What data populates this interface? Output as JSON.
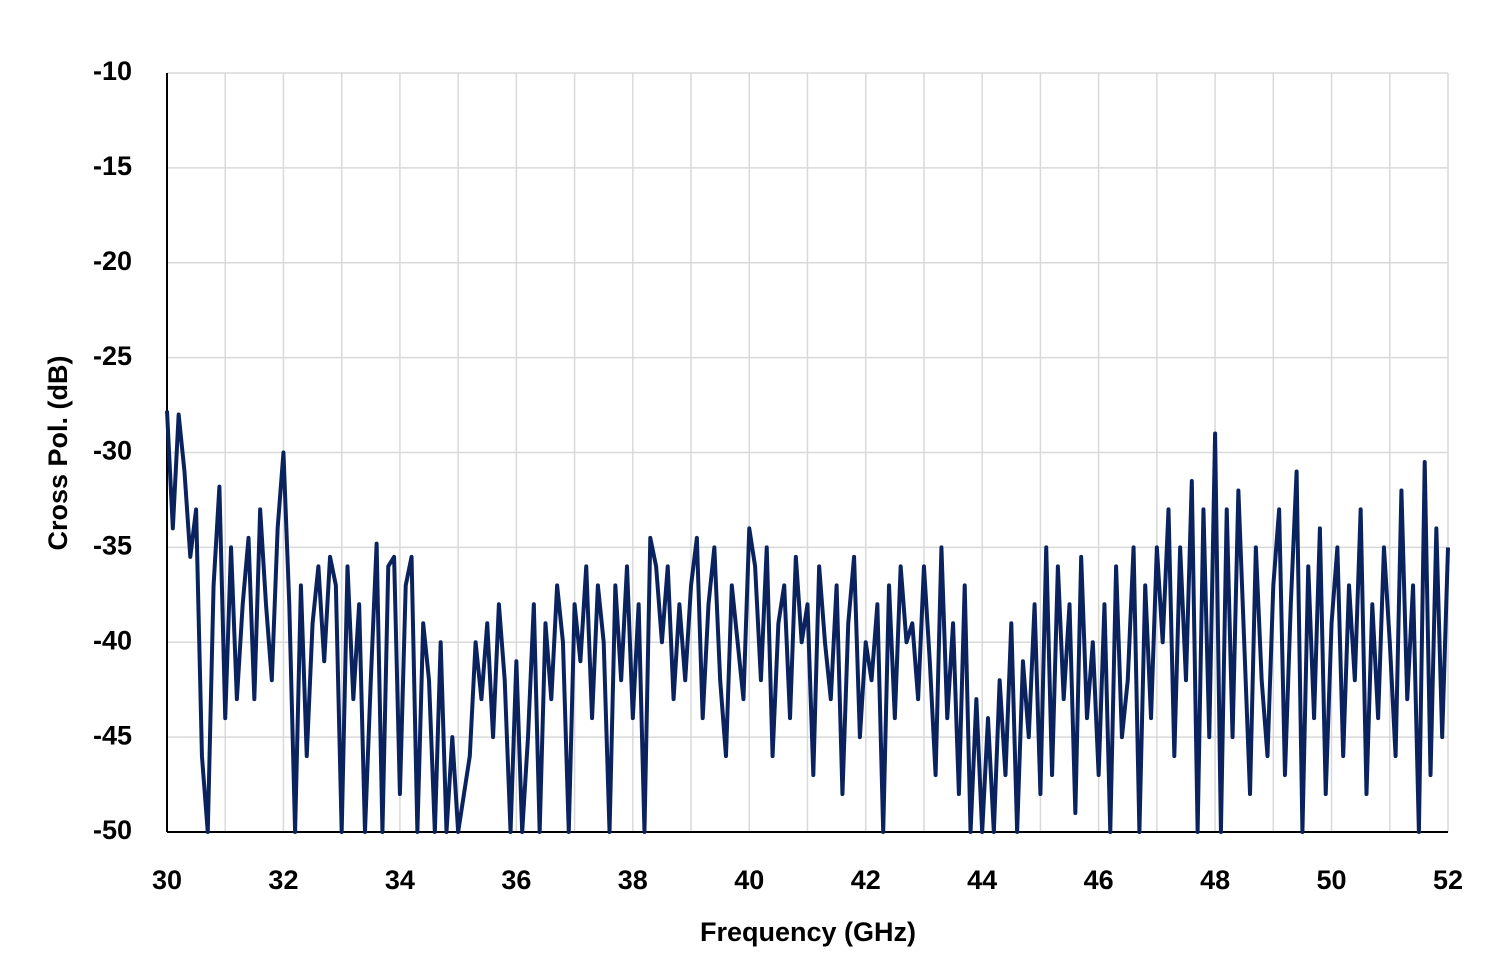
{
  "chart_data": {
    "type": "line",
    "x_label": "Frequency  (GHz)",
    "y_label": "Cross Pol. (dB)",
    "xlim": [
      30,
      52
    ],
    "xticks": [
      30,
      32,
      34,
      36,
      38,
      40,
      42,
      44,
      46,
      48,
      50,
      52
    ],
    "x_minor_gridlines": [
      31,
      33,
      35,
      37,
      39,
      41,
      43,
      45,
      47,
      49,
      51
    ],
    "ylim": [
      -50,
      -10
    ],
    "yticks": [
      -50,
      -45,
      -40,
      -35,
      -30,
      -25,
      -20,
      -15,
      -10
    ],
    "grid": true,
    "x": [
      30.0,
      30.1,
      30.2,
      30.3,
      30.4,
      30.5,
      30.6,
      30.7,
      30.8,
      30.9,
      31.0,
      31.1,
      31.2,
      31.3,
      31.4,
      31.5,
      31.6,
      31.7,
      31.8,
      31.9,
      32.0,
      32.1,
      32.2,
      32.3,
      32.4,
      32.5,
      32.6,
      32.7,
      32.8,
      32.9,
      33.0,
      33.1,
      33.2,
      33.3,
      33.4,
      33.5,
      33.6,
      33.7,
      33.8,
      33.9,
      34.0,
      34.1,
      34.2,
      34.3,
      34.4,
      34.5,
      34.6,
      34.7,
      34.8,
      34.9,
      35.0,
      35.1,
      35.2,
      35.3,
      35.4,
      35.5,
      35.6,
      35.7,
      35.8,
      35.9,
      36.0,
      36.1,
      36.2,
      36.3,
      36.4,
      36.5,
      36.6,
      36.7,
      36.8,
      36.9,
      37.0,
      37.1,
      37.2,
      37.3,
      37.4,
      37.5,
      37.6,
      37.7,
      37.8,
      37.9,
      38.0,
      38.1,
      38.2,
      38.3,
      38.4,
      38.5,
      38.6,
      38.7,
      38.8,
      38.9,
      39.0,
      39.1,
      39.2,
      39.3,
      39.4,
      39.5,
      39.6,
      39.7,
      39.8,
      39.9,
      40.0,
      40.1,
      40.2,
      40.3,
      40.4,
      40.5,
      40.6,
      40.7,
      40.8,
      40.9,
      41.0,
      41.1,
      41.2,
      41.3,
      41.4,
      41.5,
      41.6,
      41.7,
      41.8,
      41.9,
      42.0,
      42.1,
      42.2,
      42.3,
      42.4,
      42.5,
      42.6,
      42.7,
      42.8,
      42.9,
      43.0,
      43.1,
      43.2,
      43.3,
      43.4,
      43.5,
      43.6,
      43.7,
      43.8,
      43.9,
      44.0,
      44.1,
      44.2,
      44.3,
      44.4,
      44.5,
      44.6,
      44.7,
      44.8,
      44.9,
      45.0,
      45.1,
      45.2,
      45.3,
      45.4,
      45.5,
      45.6,
      45.7,
      45.8,
      45.9,
      46.0,
      46.1,
      46.2,
      46.3,
      46.4,
      46.5,
      46.6,
      46.7,
      46.8,
      46.9,
      47.0,
      47.1,
      47.2,
      47.3,
      47.4,
      47.5,
      47.6,
      47.7,
      47.8,
      47.9,
      48.0,
      48.1,
      48.2,
      48.3,
      48.4,
      48.5,
      48.6,
      48.7,
      48.8,
      48.9,
      49.0,
      49.1,
      49.2,
      49.3,
      49.4,
      49.5,
      49.6,
      49.7,
      49.8,
      49.9,
      50.0,
      50.1,
      50.2,
      50.3,
      50.4,
      50.5,
      50.6,
      50.7,
      50.8,
      50.9,
      51.0,
      51.1,
      51.2,
      51.3,
      51.4,
      51.5,
      51.6,
      51.7,
      51.8,
      51.9,
      52.0
    ],
    "series": [
      {
        "color": "#0a235f",
        "values": [
          -27.8,
          -34,
          -28,
          -31,
          -35.5,
          -33,
          -46,
          -50,
          -37,
          -31.8,
          -44,
          -35,
          -43,
          -38,
          -34.5,
          -43,
          -33,
          -38,
          -42,
          -34,
          -30,
          -38,
          -50,
          -37,
          -46,
          -39,
          -36,
          -41,
          -35.5,
          -37,
          -50,
          -36,
          -43,
          -38,
          -50,
          -42,
          -34.8,
          -50,
          -36,
          -35.5,
          -48,
          -37,
          -35.5,
          -50,
          -39,
          -42,
          -50,
          -40,
          -50,
          -45,
          -50,
          -48,
          -46,
          -40,
          -43,
          -39,
          -45,
          -38,
          -42,
          -50,
          -41,
          -50,
          -45,
          -38,
          -50,
          -39,
          -43,
          -37,
          -40,
          -50,
          -38,
          -41,
          -36,
          -44,
          -37,
          -40,
          -50,
          -37,
          -42,
          -36,
          -44,
          -38,
          -50,
          -34.5,
          -36,
          -40,
          -36,
          -43,
          -38,
          -42,
          -37,
          -34.5,
          -44,
          -38,
          -35,
          -42,
          -46,
          -37,
          -40,
          -43,
          -34,
          -36,
          -42,
          -35,
          -46,
          -39,
          -37,
          -44,
          -35.5,
          -40,
          -38,
          -47,
          -36,
          -40,
          -43,
          -37,
          -48,
          -39,
          -35.5,
          -45,
          -40,
          -42,
          -38,
          -50,
          -37,
          -44,
          -36,
          -40,
          -39,
          -43,
          -36,
          -41,
          -47,
          -35,
          -44,
          -39,
          -48,
          -37,
          -50,
          -43,
          -50,
          -44,
          -50,
          -42,
          -47,
          -39,
          -50,
          -41,
          -45,
          -38,
          -48,
          -35,
          -47,
          -36,
          -43,
          -38,
          -49,
          -35.5,
          -44,
          -40,
          -47,
          -38,
          -50,
          -36,
          -45,
          -42,
          -35,
          -50,
          -37,
          -44,
          -35,
          -40,
          -33,
          -46,
          -35,
          -42,
          -31.5,
          -50,
          -33,
          -45,
          -29,
          -50,
          -33,
          -45,
          -32,
          -40,
          -48,
          -35,
          -42,
          -46,
          -37,
          -33,
          -47,
          -38,
          -31,
          -50,
          -36,
          -44,
          -34,
          -48,
          -39,
          -35,
          -46,
          -37,
          -42,
          -33,
          -48,
          -38,
          -44,
          -35,
          -40,
          -46,
          -32,
          -43,
          -37,
          -50,
          -30.5,
          -47,
          -34,
          -45,
          -35
        ]
      }
    ]
  }
}
